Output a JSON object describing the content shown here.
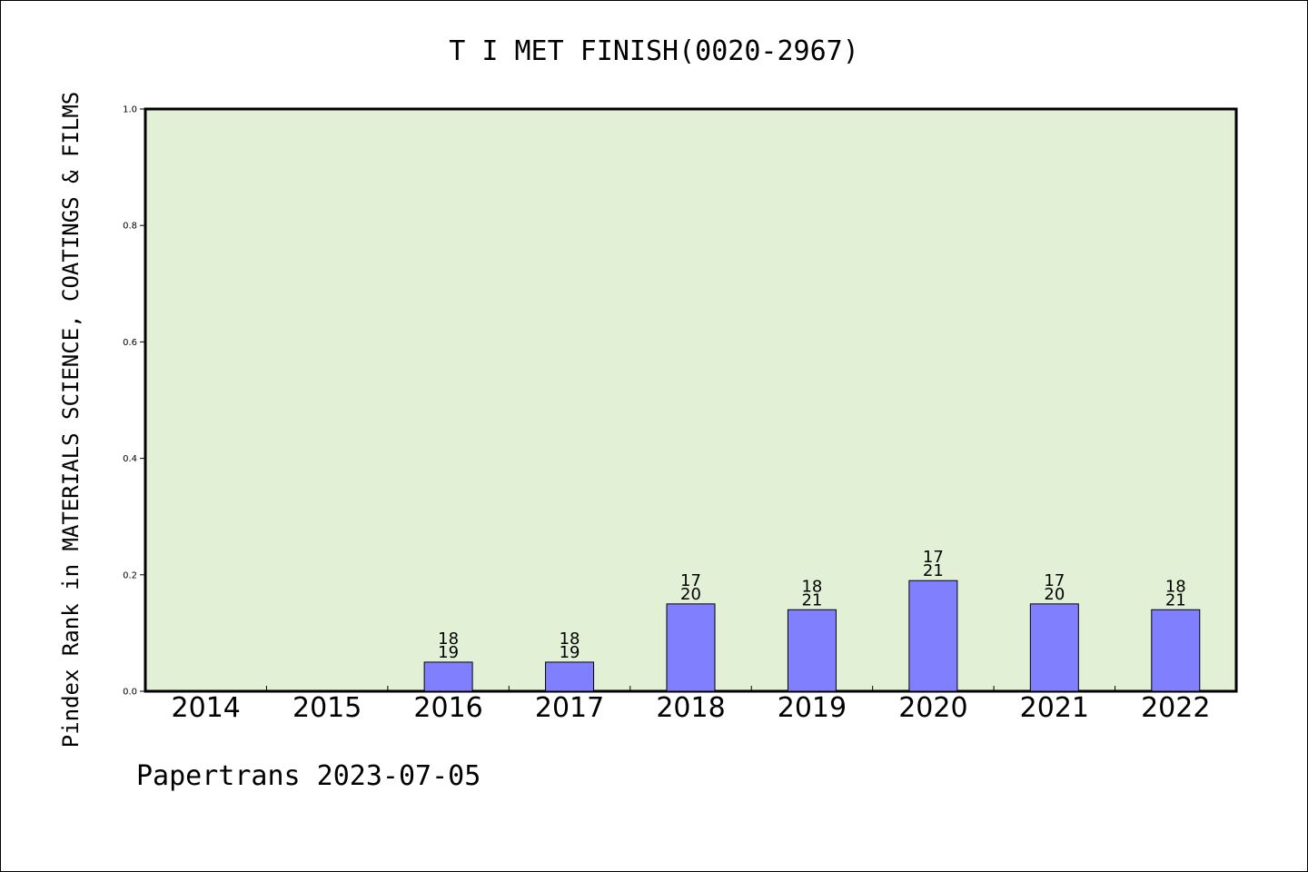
{
  "chart_data": {
    "type": "bar",
    "title": "T I MET FINISH(0020-2967)",
    "ylabel": "Pindex Rank in MATERIALS SCIENCE, COATINGS & FILMS",
    "xlabel": "",
    "footer": "Papertrans 2023-07-05",
    "categories": [
      "2014",
      "2015",
      "2016",
      "2017",
      "2018",
      "2019",
      "2020",
      "2021",
      "2022"
    ],
    "values": [
      0,
      0,
      0.05,
      0.05,
      0.15,
      0.14,
      0.19,
      0.15,
      0.14
    ],
    "bar_labels": [
      null,
      null,
      {
        "top": "18",
        "bottom": "19"
      },
      {
        "top": "18",
        "bottom": "19"
      },
      {
        "top": "17",
        "bottom": "20"
      },
      {
        "top": "18",
        "bottom": "21"
      },
      {
        "top": "17",
        "bottom": "21"
      },
      {
        "top": "17",
        "bottom": "20"
      },
      {
        "top": "18",
        "bottom": "21"
      }
    ],
    "ylim": [
      0,
      1.0
    ],
    "yticks": [
      "0.0",
      "0.2",
      "0.4",
      "0.6",
      "0.8",
      "1.0"
    ],
    "grid": false,
    "colors": {
      "plot_background": "#e2f0d5",
      "bar_fill": "#8080ff",
      "bar_stroke": "#000000"
    }
  }
}
